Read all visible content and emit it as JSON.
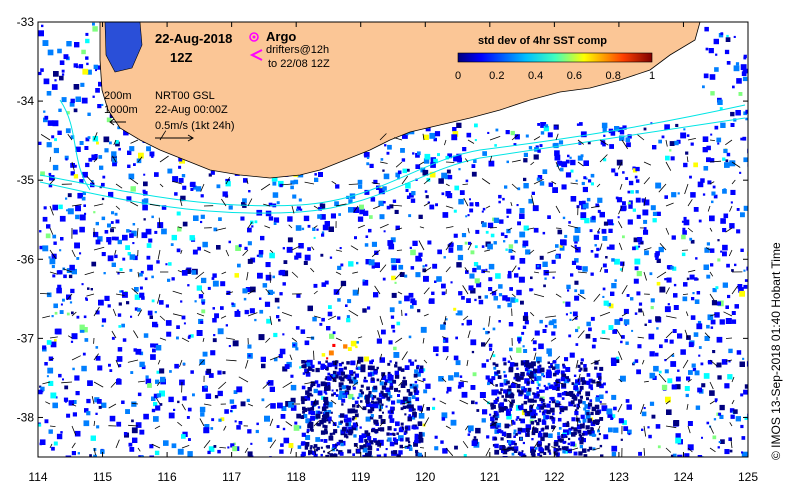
{
  "header": {
    "date": "22-Aug-2018",
    "time": "12Z"
  },
  "legend": {
    "argo_label": "Argo",
    "drifters_label": "drifters@12h",
    "drifters_to": "to 22/08 12Z",
    "contour_200": "200m",
    "contour_1000": "1000m",
    "model_label": "NRT00 GSL",
    "model_time": "22-Aug 00:00Z",
    "vector_scale": "0.5m/s (1kt 24h)"
  },
  "colorbar": {
    "title": "std dev of 4hr SST comp",
    "tick_labels": [
      "0",
      "0.2",
      "0.4",
      "0.6",
      "0.8",
      "1"
    ],
    "range": [
      0,
      1
    ],
    "colormap": [
      "#00007f",
      "#0000ff",
      "#007fff",
      "#00ffff",
      "#7fff7f",
      "#ffff00",
      "#ff7f00",
      "#ff0000",
      "#7f0000"
    ]
  },
  "axes": {
    "lon_labels": [
      "114",
      "115",
      "116",
      "117",
      "118",
      "119",
      "120",
      "121",
      "122",
      "123",
      "124",
      "125"
    ],
    "lat_labels": [
      "-33",
      "-34",
      "-35",
      "-36",
      "-37",
      "-38"
    ],
    "lon_range": [
      114,
      125
    ],
    "lat_range": [
      -38.5,
      -33
    ]
  },
  "credit": "© IMOS 13-Sep-2018 01:40 Hobart Time",
  "colors": {
    "land": "#fbc696",
    "argo": "#ff00ff",
    "drifter": "#ff00ff",
    "current_line": "#00e5e5"
  }
}
